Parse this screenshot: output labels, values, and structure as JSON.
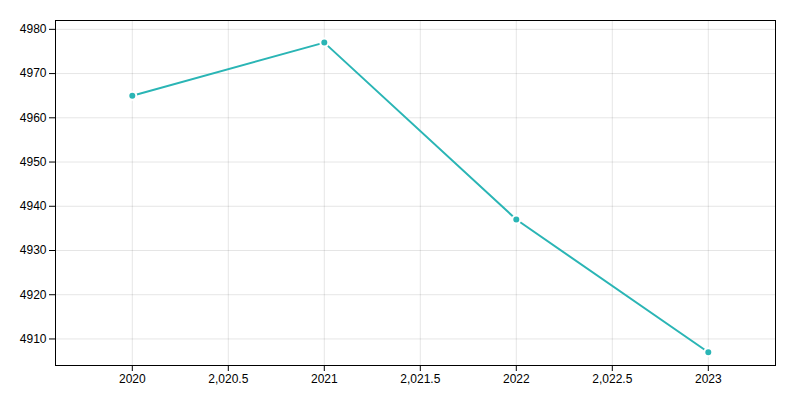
{
  "chart_data": {
    "type": "line",
    "x": [
      2020,
      2021,
      2022,
      2023
    ],
    "values": [
      4965,
      4977,
      4937,
      4907
    ],
    "color": "#2ab5b5",
    "marker": "circle",
    "xlim": [
      2019.6,
      2023.35
    ],
    "ylim": [
      4904,
      4982
    ],
    "xticks": [
      2020,
      {
        "value": 2020.5,
        "label": "2,020.5"
      },
      2021,
      {
        "value": 2021.5,
        "label": "2,021.5"
      },
      2022,
      {
        "value": 2022.5,
        "label": "2,022.5"
      },
      2023
    ],
    "yticks": [
      4910,
      4920,
      4930,
      4940,
      4950,
      4960,
      4970,
      4980
    ],
    "grid": true
  }
}
